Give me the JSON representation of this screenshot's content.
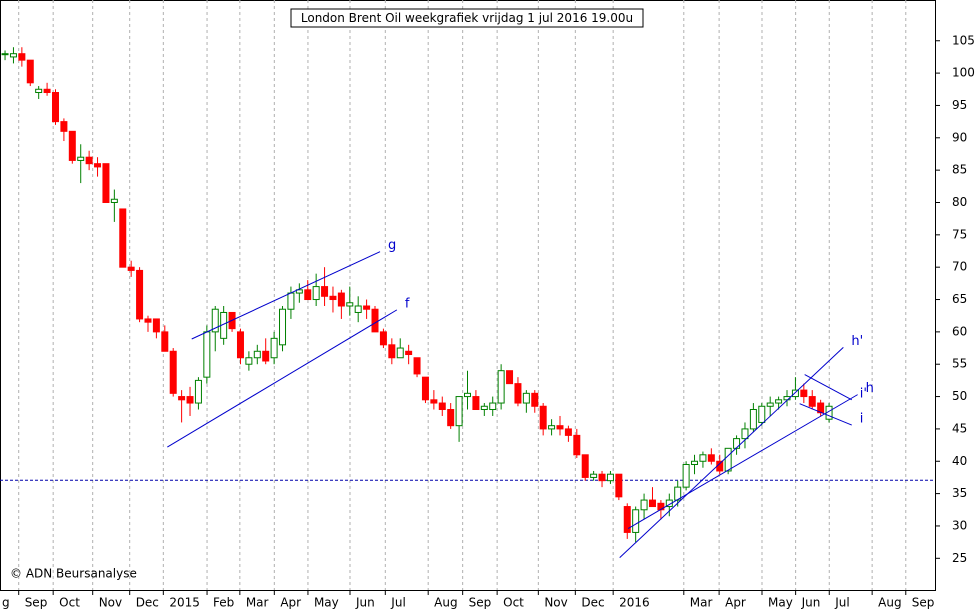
{
  "chart_data": {
    "type": "candlestick",
    "title": "London Brent Oil weekgrafiek vrijdag 1 jul 2016 19.00u",
    "credit": "© ADN Beursanalyse",
    "up_color": "#008000",
    "down_color": "#ff0000",
    "xlim": [
      -0.6,
      110.6
    ],
    "ylim": [
      20.1,
      111.3
    ],
    "yticks": [
      25,
      30,
      35,
      40,
      45,
      50,
      55,
      60,
      65,
      70,
      75,
      80,
      85,
      90,
      95,
      100,
      105
    ],
    "xticks": [
      {
        "value": -0.6,
        "label": "g"
      },
      {
        "value": 2.1,
        "label": "Sep"
      },
      {
        "value": 6.2,
        "label": "Oct"
      },
      {
        "value": 10.9,
        "label": "Nov"
      },
      {
        "value": 15.3,
        "label": "Dec"
      },
      {
        "value": 19.3,
        "label": "2015"
      },
      {
        "value": 24.5,
        "label": "Feb"
      },
      {
        "value": 28.4,
        "label": "Mar"
      },
      {
        "value": 32.5,
        "label": "Apr"
      },
      {
        "value": 36.5,
        "label": "May"
      },
      {
        "value": 41.5,
        "label": "Jun"
      },
      {
        "value": 45.7,
        "label": "Jul"
      },
      {
        "value": 50.8,
        "label": "Aug"
      },
      {
        "value": 54.9,
        "label": "Sep"
      },
      {
        "value": 59.0,
        "label": "Oct"
      },
      {
        "value": 63.9,
        "label": "Nov"
      },
      {
        "value": 68.3,
        "label": "Dec"
      },
      {
        "value": 72.8,
        "label": "2016"
      },
      {
        "value": 81.2,
        "label": "Mar"
      },
      {
        "value": 85.4,
        "label": "Apr"
      },
      {
        "value": 90.5,
        "label": "May"
      },
      {
        "value": 94.5,
        "label": "Jun"
      },
      {
        "value": 98.5,
        "label": "Jul"
      },
      {
        "value": 103.6,
        "label": "Aug"
      },
      {
        "value": 107.6,
        "label": "Sep"
      }
    ],
    "ohlc": [
      [
        103,
        103.5,
        102,
        103
      ],
      [
        102.5,
        104,
        101.5,
        103
      ],
      [
        103,
        104,
        101,
        102
      ],
      [
        102,
        102,
        98,
        98.5
      ],
      [
        97,
        98,
        96,
        97.5
      ],
      [
        97.5,
        98.5,
        96.5,
        97
      ],
      [
        97,
        97.5,
        92,
        92.5
      ],
      [
        92.5,
        93,
        89.5,
        91
      ],
      [
        91,
        91,
        86,
        86.5
      ],
      [
        86.5,
        89,
        83,
        87
      ],
      [
        87,
        88,
        85,
        86
      ],
      [
        86,
        87,
        84,
        85.5
      ],
      [
        86,
        86,
        80,
        80
      ],
      [
        80,
        82,
        77,
        80.5
      ],
      [
        79,
        79,
        70,
        70
      ],
      [
        70,
        71,
        68.5,
        69.5
      ],
      [
        69.5,
        70,
        61.5,
        62
      ],
      [
        62,
        62.5,
        60,
        61.5
      ],
      [
        62,
        62,
        59,
        60
      ],
      [
        60,
        61,
        57,
        57
      ],
      [
        57,
        57.5,
        50,
        50.5
      ],
      [
        50,
        51,
        46,
        49.5
      ],
      [
        50,
        51.5,
        47,
        49
      ],
      [
        49,
        53,
        48,
        52.5
      ],
      [
        53,
        61,
        52,
        60
      ],
      [
        60,
        64,
        57,
        63.5
      ],
      [
        59,
        64,
        58,
        63
      ],
      [
        63,
        63,
        60,
        60.5
      ],
      [
        60,
        60.5,
        55,
        56
      ],
      [
        55,
        57,
        54,
        56
      ],
      [
        56,
        58,
        55,
        57
      ],
      [
        57,
        59,
        55,
        55.5
      ],
      [
        56,
        60,
        55,
        59
      ],
      [
        58,
        64,
        57,
        63.5
      ],
      [
        63.5,
        67,
        62,
        66
      ],
      [
        66,
        67.5,
        64.5,
        66.5
      ],
      [
        66.5,
        68,
        65,
        65
      ],
      [
        65,
        69,
        64,
        67
      ],
      [
        67,
        70,
        64,
        65.5
      ],
      [
        65.5,
        67,
        63,
        65
      ],
      [
        66,
        66.5,
        62,
        64
      ],
      [
        64,
        67,
        62.5,
        64.5
      ],
      [
        63,
        65.5,
        61.5,
        64
      ],
      [
        64,
        65,
        62,
        63.5
      ],
      [
        63.5,
        64,
        60,
        60
      ],
      [
        60,
        60.5,
        57.5,
        58
      ],
      [
        58,
        59,
        55,
        56
      ],
      [
        56,
        59,
        56,
        57.5
      ],
      [
        57,
        58,
        55,
        56.5
      ],
      [
        56,
        56,
        53,
        53.5
      ],
      [
        53,
        53,
        49,
        49.5
      ],
      [
        49.5,
        51,
        48,
        49
      ],
      [
        49,
        50,
        47,
        48
      ],
      [
        48,
        49,
        45,
        45.5
      ],
      [
        45.5,
        50,
        43,
        50
      ],
      [
        50,
        54,
        48,
        50.5
      ],
      [
        50,
        51,
        48,
        48
      ],
      [
        48,
        49,
        47,
        48.5
      ],
      [
        48,
        50,
        47,
        49
      ],
      [
        49,
        55,
        48,
        54
      ],
      [
        54,
        54,
        52,
        52
      ],
      [
        52,
        53,
        48.5,
        49
      ],
      [
        49,
        51,
        47.5,
        50.5
      ],
      [
        50.5,
        51,
        47.5,
        48.5
      ],
      [
        48.5,
        49,
        44,
        45
      ],
      [
        45,
        46.5,
        44,
        45.5
      ],
      [
        45.5,
        47,
        44,
        45
      ],
      [
        45,
        45.5,
        43,
        44
      ],
      [
        44,
        45,
        40.5,
        41
      ],
      [
        41,
        41,
        37,
        37.5
      ],
      [
        37.5,
        38.5,
        37,
        38
      ],
      [
        38,
        38.5,
        36,
        37
      ],
      [
        37,
        38.5,
        36.5,
        38
      ],
      [
        38,
        38,
        34,
        34.5
      ],
      [
        33,
        33.5,
        28,
        29
      ],
      [
        29,
        33,
        27.5,
        32.5
      ],
      [
        32.5,
        35,
        31,
        34
      ],
      [
        34,
        36,
        33,
        33
      ],
      [
        33.5,
        34,
        31,
        32.5
      ],
      [
        33,
        35,
        31.5,
        34
      ],
      [
        34,
        37,
        33,
        36
      ],
      [
        36,
        40,
        35.5,
        39.5
      ],
      [
        39.5,
        41,
        38,
        40
      ],
      [
        40,
        41.5,
        39,
        41
      ],
      [
        41,
        42,
        39.5,
        40
      ],
      [
        40,
        41,
        38,
        38.5
      ],
      [
        38.5,
        42,
        38,
        42
      ],
      [
        42,
        44,
        41,
        43.5
      ],
      [
        43.5,
        46,
        42,
        45
      ],
      [
        45,
        49,
        44.5,
        48
      ],
      [
        46,
        49,
        45.5,
        48.5
      ],
      [
        48.5,
        50,
        47,
        49
      ],
      [
        49,
        50,
        48,
        49.5
      ],
      [
        49.5,
        51,
        48.5,
        50
      ],
      [
        50,
        53,
        49.5,
        51
      ],
      [
        51,
        52,
        49,
        50
      ],
      [
        50,
        51,
        48,
        48.5
      ],
      [
        49,
        49.5,
        47,
        47.5
      ],
      [
        46.5,
        49,
        46,
        48.5
      ]
    ],
    "support_level": 37.07,
    "trendlines": [
      {
        "label": "g",
        "x": [
          22.2,
          44.6
        ],
        "y": [
          58.9,
          72.4
        ]
      },
      {
        "label": "f",
        "x": [
          19.3,
          46.6
        ],
        "y": [
          42.2,
          63.4
        ]
      },
      {
        "label": "h'",
        "x": [
          73.1,
          99.7
        ],
        "y": [
          25.1,
          57.6
        ]
      },
      {
        "label": "h",
        "x": [
          74.1,
          101.4
        ],
        "y": [
          29.6,
          50.3
        ]
      },
      {
        "label": "i'",
        "x": [
          95.1,
          100.7
        ],
        "y": [
          53.4,
          49.5
        ]
      },
      {
        "label": "i",
        "x": [
          94.5,
          100.7
        ],
        "y": [
          48.9,
          45.6
        ]
      }
    ]
  }
}
